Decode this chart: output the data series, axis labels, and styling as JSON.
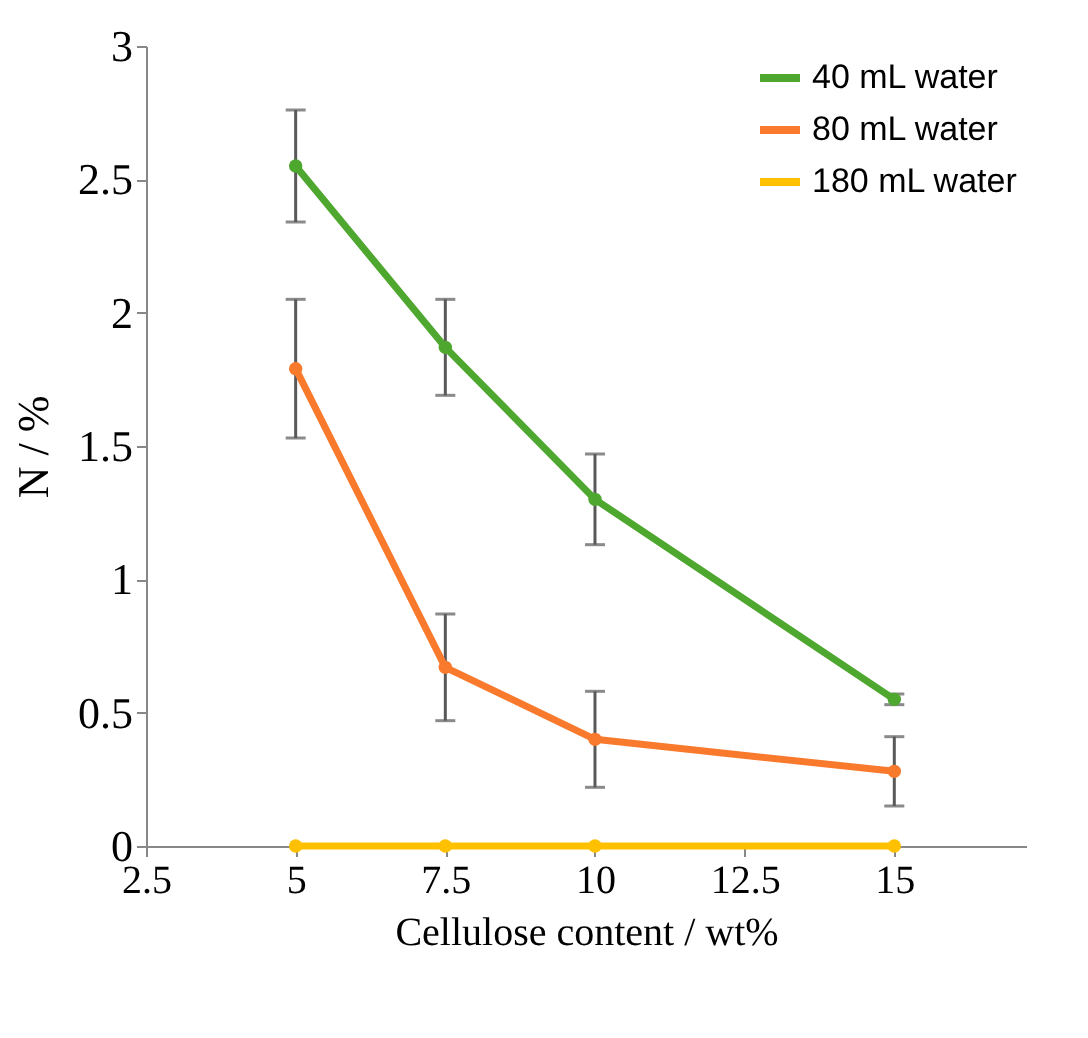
{
  "chart_data": {
    "type": "line",
    "xlabel": "Cellulose content / wt%",
    "ylabel": "N / %",
    "x": [
      5,
      7.5,
      10,
      15
    ],
    "series": [
      {
        "name": "40 mL water",
        "color": "#4ea72e",
        "values": [
          2.55,
          1.87,
          1.3,
          0.55
        ],
        "errors": [
          0.21,
          0.18,
          0.17,
          0.02
        ]
      },
      {
        "name": "80 mL water",
        "color": "#f97a2c",
        "values": [
          1.79,
          0.67,
          0.4,
          0.28
        ],
        "errors": [
          0.26,
          0.2,
          0.18,
          0.13
        ]
      },
      {
        "name": "180 mL water",
        "color": "#ffc000",
        "values": [
          0,
          0,
          0,
          0
        ]
      }
    ],
    "xlim": [
      2.5,
      17.2
    ],
    "xticks": [
      2.5,
      5,
      7.5,
      10,
      12.5,
      15
    ],
    "ylim": [
      0,
      3
    ],
    "yticks": [
      0,
      0.5,
      1,
      1.5,
      2,
      2.5,
      3
    ],
    "grid": false,
    "legend": "top right",
    "marker": "circle",
    "line_style": "solid"
  }
}
